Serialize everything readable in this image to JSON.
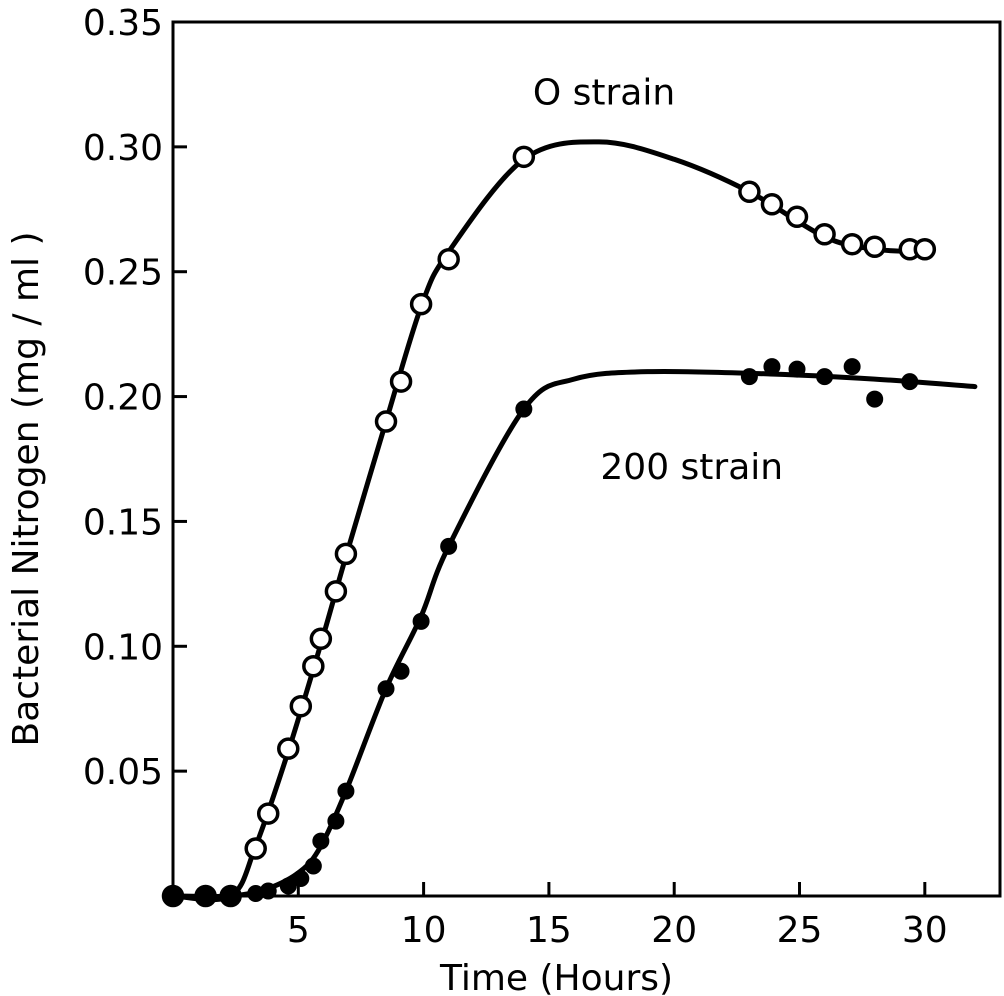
{
  "chart_data": {
    "type": "scatter",
    "title": "",
    "xlabel": "Time (Hours)",
    "ylabel": "Bacterial Nitrogen (mg / ml )",
    "xlim": [
      0,
      33
    ],
    "ylim": [
      0,
      0.35
    ],
    "x_ticks": [
      5,
      10,
      15,
      20,
      25,
      30
    ],
    "x_tick_labels": [
      "5",
      "10",
      "15",
      "20",
      "25",
      "30"
    ],
    "y_ticks": [
      0.05,
      0.1,
      0.15,
      0.2,
      0.25,
      0.3,
      0.35
    ],
    "y_tick_labels": [
      "0.05",
      "0.10",
      "0.15",
      "0.20",
      "0.25",
      "0.30",
      "0.35"
    ],
    "grid": false,
    "legend": "none",
    "series": [
      {
        "name": "O strain",
        "marker": "open-circle",
        "x": [
          0,
          1.3,
          2.3,
          3.3,
          3.8,
          4.6,
          5.1,
          5.6,
          5.9,
          6.5,
          6.9,
          8.5,
          9.1,
          9.9,
          11.0,
          14.0,
          23.0,
          23.9,
          24.9,
          26.0,
          27.1,
          28.0,
          29.4,
          30.0
        ],
        "y": [
          0.0,
          0.0,
          0.0,
          0.019,
          0.033,
          0.059,
          0.076,
          0.092,
          0.103,
          0.122,
          0.137,
          0.19,
          0.206,
          0.237,
          0.255,
          0.296,
          0.282,
          0.277,
          0.272,
          0.265,
          0.261,
          0.26,
          0.259,
          0.259
        ]
      },
      {
        "name": "200 strain",
        "marker": "filled-circle",
        "x": [
          0,
          1.3,
          2.3,
          3.3,
          3.8,
          4.6,
          5.1,
          5.6,
          5.9,
          6.5,
          6.9,
          8.5,
          9.1,
          9.9,
          11.0,
          14.0,
          23.0,
          23.9,
          24.9,
          26.0,
          27.1,
          28.0,
          29.4
        ],
        "y": [
          0.0,
          0.0,
          0.0,
          0.001,
          0.002,
          0.004,
          0.007,
          0.012,
          0.022,
          0.03,
          0.042,
          0.083,
          0.09,
          0.11,
          0.14,
          0.195,
          0.208,
          0.212,
          0.211,
          0.208,
          0.212,
          0.199,
          0.206
        ]
      }
    ],
    "annotations": [
      {
        "text": "O strain",
        "x": 17.2,
        "y": 0.317
      },
      {
        "text": "200 strain",
        "x": 20.7,
        "y": 0.167
      }
    ]
  }
}
